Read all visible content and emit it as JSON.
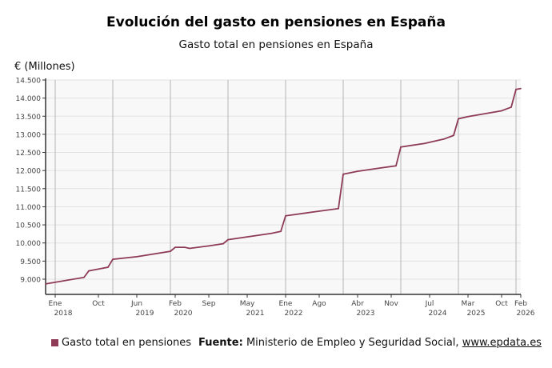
{
  "chart_data": {
    "type": "line",
    "title": "Evolución del gasto en pensiones en España",
    "subtitle": "Gasto total en pensiones en España",
    "ylabel": "€ (Millones)",
    "xlabel": "",
    "xlim": [
      "2017-11",
      "2026-02"
    ],
    "ylim": [
      8580,
      14500
    ],
    "yticks": [
      9000,
      9500,
      10000,
      10500,
      11000,
      11500,
      12000,
      12500,
      13000,
      13500,
      14000,
      14500
    ],
    "ytick_labels": [
      "9.000",
      "9.500",
      "10.000",
      "10.500",
      "11.000",
      "11.500",
      "12.000",
      "12.500",
      "13.000",
      "13.500",
      "14.000",
      "14.500"
    ],
    "xticks": [
      {
        "date": "2018-01",
        "label": "Ene",
        "year": "2018"
      },
      {
        "date": "2018-10",
        "label": "Oct",
        "year": ""
      },
      {
        "date": "2019-06",
        "label": "Jun",
        "year": "2019"
      },
      {
        "date": "2020-02",
        "label": "Feb",
        "year": "2020"
      },
      {
        "date": "2020-09",
        "label": "Sep",
        "year": ""
      },
      {
        "date": "2021-05",
        "label": "May",
        "year": "2021"
      },
      {
        "date": "2022-01",
        "label": "Ene",
        "year": "2022"
      },
      {
        "date": "2022-08",
        "label": "Ago",
        "year": ""
      },
      {
        "date": "2023-04",
        "label": "Abr",
        "year": "2023"
      },
      {
        "date": "2023-11",
        "label": "Nov",
        "year": ""
      },
      {
        "date": "2024-07",
        "label": "Jul",
        "year": "2024"
      },
      {
        "date": "2025-03",
        "label": "Mar",
        "year": "2025"
      },
      {
        "date": "2025-10",
        "label": "Oct",
        "year": ""
      },
      {
        "date": "2026-02",
        "label": "Feb",
        "year": "2026"
      }
    ],
    "grid": true,
    "legend_position": "bottom-left",
    "series": [
      {
        "name": "Gasto total en pensiones",
        "color": "#8e3b58",
        "points": [
          [
            "2017-11",
            8870
          ],
          [
            "2018-07",
            9050
          ],
          [
            "2018-08",
            9230
          ],
          [
            "2018-12",
            9330
          ],
          [
            "2019-01",
            9550
          ],
          [
            "2019-06",
            9620
          ],
          [
            "2020-01",
            9770
          ],
          [
            "2020-02",
            9880
          ],
          [
            "2020-04",
            9880
          ],
          [
            "2020-05",
            9850
          ],
          [
            "2020-09",
            9920
          ],
          [
            "2020-12",
            9980
          ],
          [
            "2021-01",
            10090
          ],
          [
            "2021-10",
            10265
          ],
          [
            "2021-12",
            10320
          ],
          [
            "2022-01",
            10750
          ],
          [
            "2022-07",
            10860
          ],
          [
            "2022-12",
            10950
          ],
          [
            "2023-01",
            11900
          ],
          [
            "2023-04",
            11980
          ],
          [
            "2023-09",
            12075
          ],
          [
            "2023-12",
            12130
          ],
          [
            "2024-01",
            12650
          ],
          [
            "2024-06",
            12750
          ],
          [
            "2024-10",
            12870
          ],
          [
            "2024-12",
            12970
          ],
          [
            "2025-01",
            13430
          ],
          [
            "2025-03",
            13490
          ],
          [
            "2025-10",
            13650
          ],
          [
            "2025-12",
            13750
          ],
          [
            "2026-01",
            14240
          ],
          [
            "2026-02",
            14265
          ]
        ]
      }
    ]
  },
  "source": {
    "label": "Fuente:",
    "text": "Ministerio de Empleo y Seguridad Social,",
    "link": "www.epdata.es"
  }
}
